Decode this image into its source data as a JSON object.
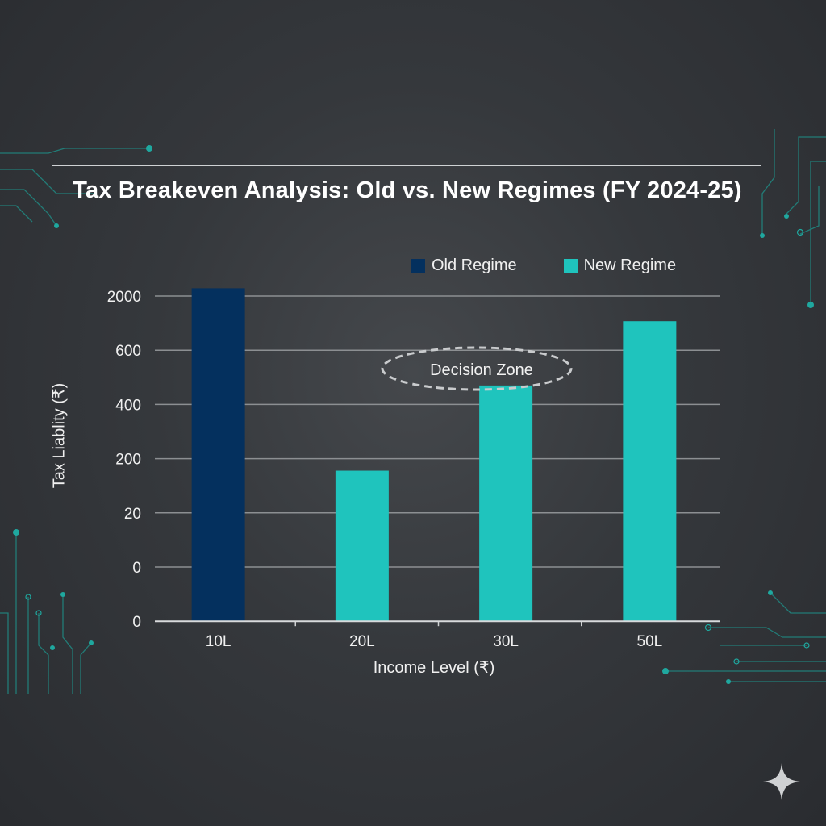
{
  "chart_data": {
    "type": "bar",
    "title": "Tax Breakeven Analysis: Old vs. New Regimes (FY 2024-25)",
    "xlabel": "Income Level (₹)",
    "ylabel": "Tax Liablity (₹)",
    "categories": [
      "10L",
      "20L",
      "30L",
      "50L"
    ],
    "y_ticks": [
      "2000",
      "600",
      "400",
      "200",
      "20",
      "0",
      "0"
    ],
    "y_tick_values": [
      2000,
      600,
      400,
      200,
      20,
      0,
      0
    ],
    "series": [
      {
        "name": "Old Regime",
        "color": "#04305e",
        "values": [
          2200,
          null,
          null,
          null
        ]
      },
      {
        "name": "New Regime",
        "color": "#1fc4bd",
        "values": [
          null,
          160,
          470,
          1350
        ]
      }
    ],
    "annotation": "Decision Zone",
    "grid": true,
    "legend_position": "top-right"
  }
}
